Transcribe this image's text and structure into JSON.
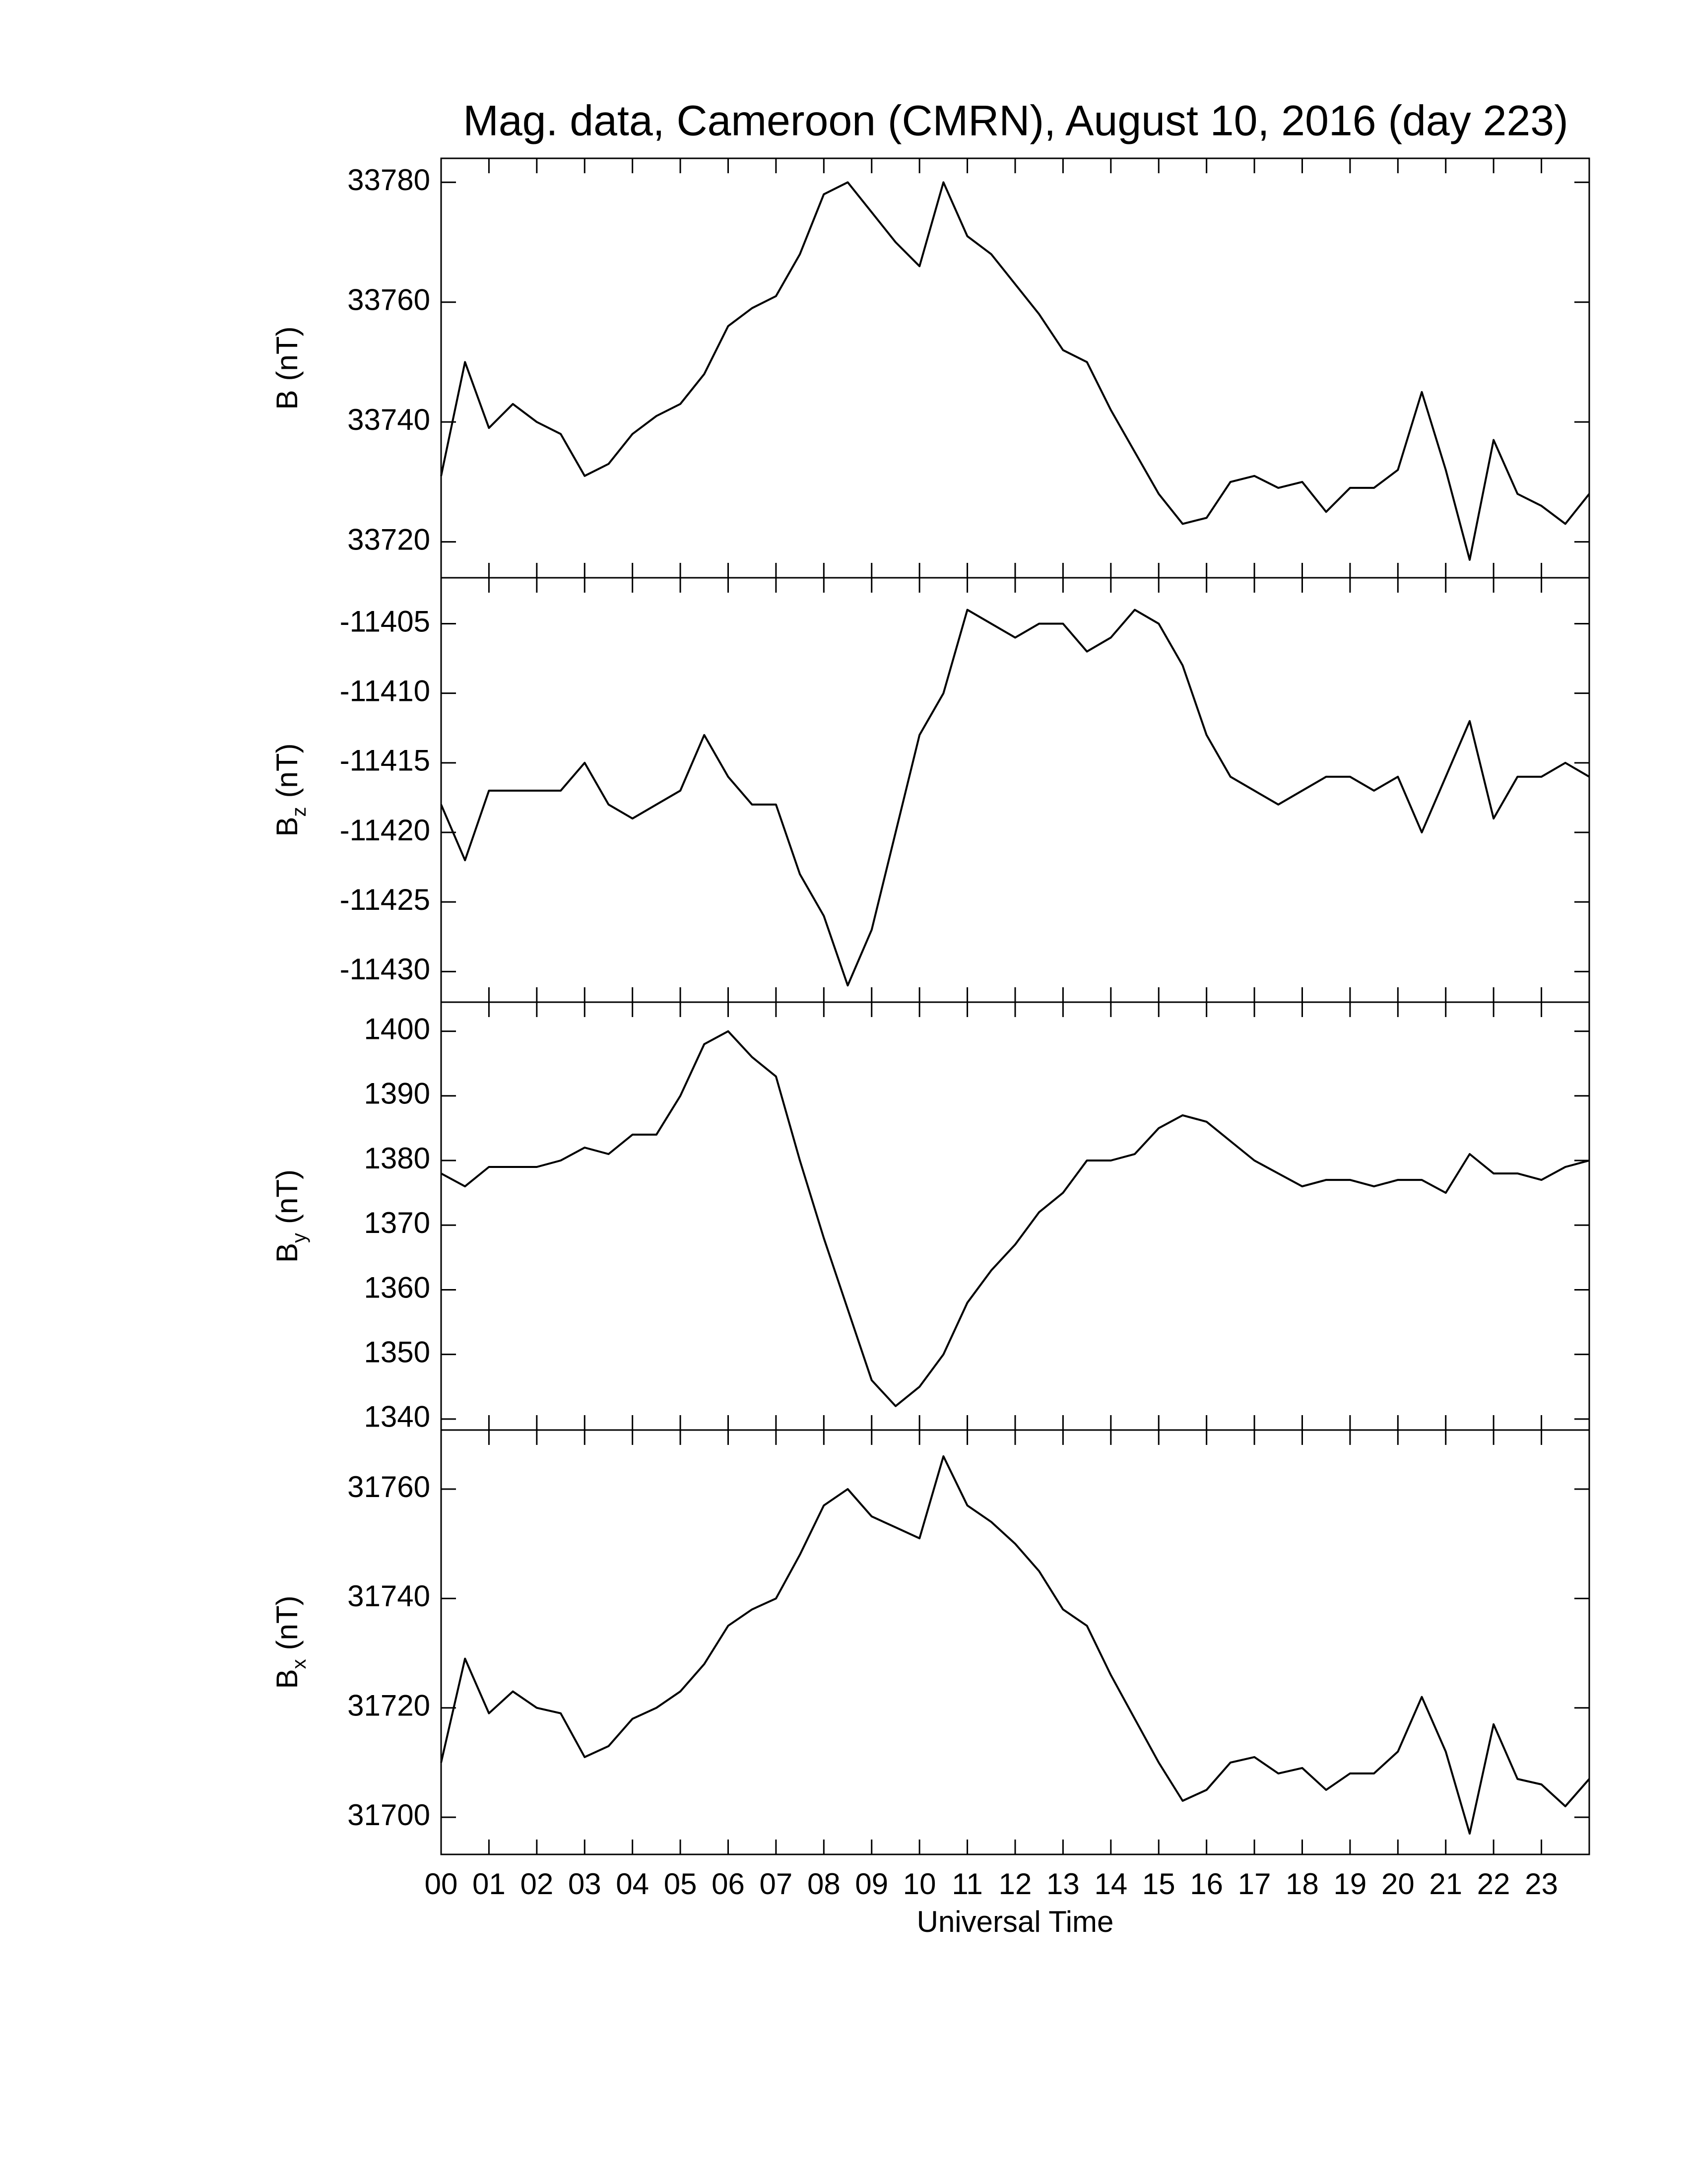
{
  "chart_data": [
    {
      "type": "line",
      "title": "Mag. data, Cameroon (CMRN), August 10, 2016 (day 223)",
      "ylabel": "B",
      "ylabel_unit": "(nT)",
      "x": [
        0,
        0.5,
        1,
        1.5,
        2,
        2.5,
        3,
        3.5,
        4,
        4.5,
        5,
        5.5,
        6,
        6.5,
        7,
        7.5,
        8,
        8.5,
        9,
        9.5,
        10,
        10.5,
        11,
        11.5,
        12,
        12.5,
        13,
        13.5,
        14,
        14.5,
        15,
        15.5,
        16,
        16.5,
        17,
        17.5,
        18,
        18.5,
        19,
        19.5,
        20,
        20.5,
        21,
        21.5,
        22,
        22.5,
        23,
        23.5,
        24
      ],
      "series": [
        {
          "color": "#000000",
          "values": [
            33731,
            33750,
            33739,
            33743,
            33740,
            33738,
            33731,
            33733,
            33738,
            33741,
            33743,
            33748,
            33756,
            33759,
            33761,
            33768,
            33778,
            33780,
            33775,
            33770,
            33766,
            33780,
            33771,
            33768,
            33763,
            33758,
            33752,
            33750,
            33742,
            33735,
            33728,
            33723,
            33724,
            33730,
            33731,
            33729,
            33730,
            33725,
            33729,
            33729,
            33732,
            33745,
            33732,
            33717,
            33737,
            33728,
            33726,
            33723,
            33728
          ]
        }
      ],
      "xlim": [
        0,
        24
      ],
      "ylim": [
        33714,
        33784
      ],
      "yticks": [
        33720,
        33740,
        33760,
        33780
      ]
    },
    {
      "type": "line",
      "ylabel": "B",
      "ylabel_sub": "z",
      "ylabel_unit": "(nT)",
      "x": [
        0,
        0.5,
        1,
        1.5,
        2,
        2.5,
        3,
        3.5,
        4,
        4.5,
        5,
        5.5,
        6,
        6.5,
        7,
        7.5,
        8,
        8.5,
        9,
        9.5,
        10,
        10.5,
        11,
        11.5,
        12,
        12.5,
        13,
        13.5,
        14,
        14.5,
        15,
        15.5,
        16,
        16.5,
        17,
        17.5,
        18,
        18.5,
        19,
        19.5,
        20,
        20.5,
        21,
        21.5,
        22,
        22.5,
        23,
        23.5,
        24
      ],
      "series": [
        {
          "color": "#000000",
          "values": [
            -11418,
            -11422,
            -11417,
            -11417,
            -11417,
            -11417,
            -11415,
            -11418,
            -11419,
            -11418,
            -11417,
            -11413,
            -11416,
            -11418,
            -11418,
            -11423,
            -11426,
            -11431,
            -11427,
            -11420,
            -11413,
            -11410,
            -11404,
            -11405,
            -11406,
            -11405,
            -11405,
            -11407,
            -11406,
            -11404,
            -11405,
            -11408,
            -11413,
            -11416,
            -11417,
            -11418,
            -11417,
            -11416,
            -11416,
            -11417,
            -11416,
            -11420,
            -11416,
            -11412,
            -11419,
            -11416,
            -11416,
            -11415,
            -11416
          ]
        }
      ],
      "xlim": [
        0,
        24
      ],
      "ylim": [
        -11432.2,
        -11401.7
      ],
      "yticks": [
        -11430,
        -11425,
        -11420,
        -11415,
        -11410,
        -11405
      ]
    },
    {
      "type": "line",
      "ylabel": "B",
      "ylabel_sub": "y",
      "ylabel_unit": "(nT)",
      "x": [
        0,
        0.5,
        1,
        1.5,
        2,
        2.5,
        3,
        3.5,
        4,
        4.5,
        5,
        5.5,
        6,
        6.5,
        7,
        7.5,
        8,
        8.5,
        9,
        9.5,
        10,
        10.5,
        11,
        11.5,
        12,
        12.5,
        13,
        13.5,
        14,
        14.5,
        15,
        15.5,
        16,
        16.5,
        17,
        17.5,
        18,
        18.5,
        19,
        19.5,
        20,
        20.5,
        21,
        21.5,
        22,
        22.5,
        23,
        23.5,
        24
      ],
      "series": [
        {
          "color": "#000000",
          "values": [
            1378,
            1376,
            1379,
            1379,
            1379,
            1380,
            1382,
            1381,
            1384,
            1384,
            1390,
            1398,
            1400,
            1396,
            1393,
            1380,
            1368,
            1357,
            1346,
            1342,
            1345,
            1350,
            1358,
            1363,
            1367,
            1372,
            1375,
            1380,
            1380,
            1381,
            1385,
            1387,
            1386,
            1383,
            1380,
            1378,
            1376,
            1377,
            1377,
            1376,
            1377,
            1377,
            1375,
            1381,
            1378,
            1378,
            1377,
            1379,
            1380
          ]
        }
      ],
      "xlim": [
        0,
        24
      ],
      "ylim": [
        1338.3,
        1404.5
      ],
      "yticks": [
        1340,
        1350,
        1360,
        1370,
        1380,
        1390,
        1400
      ]
    },
    {
      "type": "line",
      "ylabel": "B",
      "ylabel_sub": "x",
      "ylabel_unit": "(nT)",
      "xlabel": "Universal Time",
      "x": [
        0,
        0.5,
        1,
        1.5,
        2,
        2.5,
        3,
        3.5,
        4,
        4.5,
        5,
        5.5,
        6,
        6.5,
        7,
        7.5,
        8,
        8.5,
        9,
        9.5,
        10,
        10.5,
        11,
        11.5,
        12,
        12.5,
        13,
        13.5,
        14,
        14.5,
        15,
        15.5,
        16,
        16.5,
        17,
        17.5,
        18,
        18.5,
        19,
        19.5,
        20,
        20.5,
        21,
        21.5,
        22,
        22.5,
        23,
        23.5,
        24
      ],
      "series": [
        {
          "color": "#000000",
          "values": [
            31710,
            31729,
            31719,
            31723,
            31720,
            31719,
            31711,
            31713,
            31718,
            31720,
            31723,
            31728,
            31735,
            31738,
            31740,
            31748,
            31757,
            31760,
            31755,
            31753,
            31751,
            31766,
            31757,
            31754,
            31750,
            31745,
            31738,
            31735,
            31726,
            31718,
            31710,
            31703,
            31705,
            31710,
            31711,
            31708,
            31709,
            31705,
            31708,
            31708,
            31712,
            31722,
            31712,
            31697,
            31717,
            31707,
            31706,
            31702,
            31707
          ]
        }
      ],
      "xlim": [
        0,
        24
      ],
      "ylim": [
        31693.2,
        31770.8
      ],
      "yticks": [
        31700,
        31720,
        31740,
        31760
      ],
      "xticks": [
        {
          "value": 0,
          "label": "00"
        },
        {
          "value": 1,
          "label": "01"
        },
        {
          "value": 2,
          "label": "02"
        },
        {
          "value": 3,
          "label": "03"
        },
        {
          "value": 4,
          "label": "04"
        },
        {
          "value": 5,
          "label": "05"
        },
        {
          "value": 6,
          "label": "06"
        },
        {
          "value": 7,
          "label": "07"
        },
        {
          "value": 8,
          "label": "08"
        },
        {
          "value": 9,
          "label": "09"
        },
        {
          "value": 10,
          "label": "10"
        },
        {
          "value": 11,
          "label": "11"
        },
        {
          "value": 12,
          "label": "12"
        },
        {
          "value": 13,
          "label": "13"
        },
        {
          "value": 14,
          "label": "14"
        },
        {
          "value": 15,
          "label": "15"
        },
        {
          "value": 16,
          "label": "16"
        },
        {
          "value": 17,
          "label": "17"
        },
        {
          "value": 18,
          "label": "18"
        },
        {
          "value": 19,
          "label": "19"
        },
        {
          "value": 20,
          "label": "20"
        },
        {
          "value": 21,
          "label": "21"
        },
        {
          "value": 22,
          "label": "22"
        },
        {
          "value": 23,
          "label": "23"
        }
      ]
    }
  ]
}
